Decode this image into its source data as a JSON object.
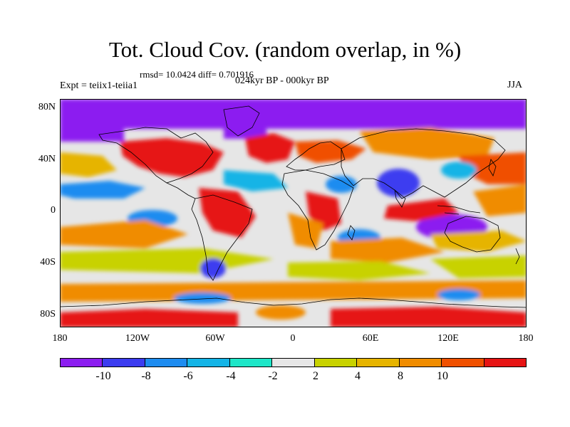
{
  "title": "Tot. Cloud Cov. (random overlap, in %)",
  "stats": "rmsd= 10.0424 diff= 0.701916",
  "period": "024kyr BP - 000kyr BP",
  "experiment": "Expt = teiix1-teiia1",
  "season": "JJA",
  "map": {
    "lat_labels": [
      "80N",
      "40N",
      "0",
      "40S",
      "80S"
    ],
    "lon_labels": [
      "180",
      "120W",
      "60W",
      "0",
      "60E",
      "120E",
      "180"
    ]
  },
  "colorbar": {
    "colors": [
      "#8c1ef0",
      "#3c3cf0",
      "#1e8cf0",
      "#14b4e6",
      "#1ee6c8",
      "#e6e6e6",
      "#c8d200",
      "#e6b400",
      "#f08c00",
      "#f05000",
      "#e61414"
    ],
    "labels": [
      "-10",
      "-8",
      "-6",
      "-4",
      "-2",
      "2",
      "4",
      "8",
      "10"
    ]
  }
}
